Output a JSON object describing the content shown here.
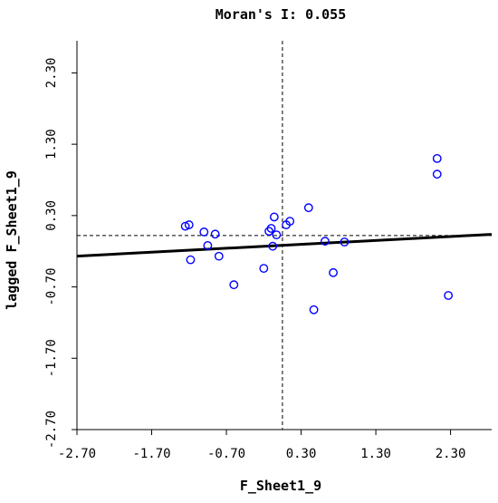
{
  "chart_data": {
    "type": "scatter",
    "title": "Moran's I: 0.055",
    "xlabel": "F_Sheet1_9",
    "ylabel": "lagged F_Sheet1_9",
    "xlim": [
      -2.7,
      2.85
    ],
    "ylim": [
      -2.7,
      2.75
    ],
    "xticks": [
      -2.7,
      -1.7,
      -0.7,
      0.3,
      1.3,
      2.3
    ],
    "yticks": [
      -2.7,
      -1.7,
      -0.7,
      0.3,
      1.3,
      2.3
    ],
    "xtick_labels": [
      "-2.70",
      "-1.70",
      "-0.70",
      "0.30",
      "1.30",
      "2.30"
    ],
    "ytick_labels": [
      "-2.70",
      "-1.70",
      "-0.70",
      "0.30",
      "1.30",
      "2.30"
    ],
    "grid": false,
    "legend": "none",
    "reference_lines": {
      "vertical_x": 0.05,
      "horizontal_y": 0.02
    },
    "regression_line": {
      "slope": 0.055,
      "intercept": -0.12,
      "x_range": [
        -2.7,
        2.85
      ]
    },
    "points": [
      {
        "x": -1.25,
        "y": 0.15
      },
      {
        "x": -1.2,
        "y": 0.17
      },
      {
        "x": -1.18,
        "y": -0.32
      },
      {
        "x": -1.0,
        "y": 0.07
      },
      {
        "x": -0.95,
        "y": -0.12
      },
      {
        "x": -0.85,
        "y": 0.04
      },
      {
        "x": -0.8,
        "y": -0.27
      },
      {
        "x": -0.6,
        "y": -0.67
      },
      {
        "x": -0.2,
        "y": -0.44
      },
      {
        "x": -0.13,
        "y": 0.08
      },
      {
        "x": -0.1,
        "y": 0.12
      },
      {
        "x": -0.08,
        "y": -0.13
      },
      {
        "x": -0.06,
        "y": 0.28
      },
      {
        "x": -0.03,
        "y": 0.03
      },
      {
        "x": 0.1,
        "y": 0.17
      },
      {
        "x": 0.15,
        "y": 0.22
      },
      {
        "x": 0.4,
        "y": 0.41
      },
      {
        "x": 0.47,
        "y": -1.02
      },
      {
        "x": 0.62,
        "y": -0.06
      },
      {
        "x": 0.73,
        "y": -0.5
      },
      {
        "x": 0.88,
        "y": -0.07
      },
      {
        "x": 2.12,
        "y": 0.88
      },
      {
        "x": 2.12,
        "y": 1.1
      },
      {
        "x": 2.27,
        "y": -0.82
      }
    ],
    "colors": {
      "title": "#800080",
      "points": "#0000ff",
      "lines": "#000000",
      "background": "#ffffff"
    }
  }
}
